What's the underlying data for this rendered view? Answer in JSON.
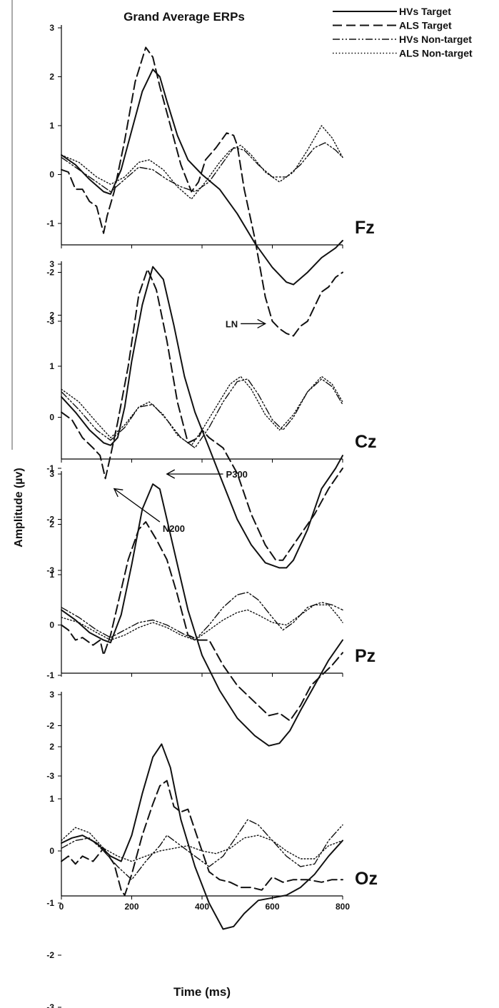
{
  "chart_data": {
    "type": "line",
    "title": "Grand Average ERPs",
    "xlabel": "Time (ms)",
    "ylabel": "Amplitude (µv)",
    "xlim": [
      0,
      800
    ],
    "ylim": [
      -3.5,
      3
    ],
    "xticks": [
      0,
      200,
      400,
      600,
      800
    ],
    "yticks": [
      3,
      2,
      1,
      0,
      -1,
      -2,
      -3
    ],
    "grid": false,
    "legend_position": "top-right",
    "legend": [
      {
        "name": "HVs Target",
        "style": "solid"
      },
      {
        "name": "ALS Target",
        "style": "dashed"
      },
      {
        "name": "HVs  Non-target",
        "style": "dashdotdot"
      },
      {
        "name": "ALS Non-target",
        "style": "dotted"
      }
    ],
    "panels": [
      {
        "label": "Fz",
        "annotations": [
          {
            "text": "LN",
            "x": 510,
            "y": -3.05,
            "target_x": 580,
            "target_y": -3.05
          }
        ],
        "series": [
          {
            "name": "HVs Target",
            "x": [
              0,
              40,
              80,
              120,
              140,
              170,
              200,
              230,
              260,
              280,
              300,
              330,
              360,
              400,
              450,
              500,
              550,
              600,
              640,
              660,
              700,
              740,
              780,
              800
            ],
            "y": [
              0.4,
              0.2,
              -0.1,
              -0.35,
              -0.4,
              0.1,
              0.9,
              1.7,
              2.15,
              2.0,
              1.5,
              0.8,
              0.3,
              0.0,
              -0.3,
              -0.8,
              -1.4,
              -1.9,
              -2.2,
              -2.25,
              -2.0,
              -1.7,
              -1.5,
              -1.35
            ]
          },
          {
            "name": "ALS Target",
            "x": [
              0,
              20,
              40,
              60,
              80,
              100,
              120,
              130,
              150,
              180,
              210,
              240,
              260,
              280,
              310,
              340,
              370,
              390,
              410,
              440,
              470,
              490,
              500,
              520,
              550,
              580,
              600,
              620,
              640,
              660,
              680,
              700,
              720,
              740,
              760,
              780,
              800
            ],
            "y": [
              0.1,
              0.05,
              -0.3,
              -0.3,
              -0.55,
              -0.65,
              -1.2,
              -0.85,
              -0.35,
              0.7,
              1.9,
              2.6,
              2.4,
              1.8,
              1.0,
              0.2,
              -0.35,
              -0.15,
              0.3,
              0.55,
              0.85,
              0.8,
              0.6,
              -0.3,
              -1.3,
              -2.5,
              -3.0,
              -3.15,
              -3.25,
              -3.3,
              -3.1,
              -3.0,
              -2.7,
              -2.4,
              -2.3,
              -2.1,
              -2.0
            ]
          },
          {
            "name": "HVs  Non-target",
            "x": [
              0,
              50,
              100,
              140,
              180,
              220,
              260,
              300,
              340,
              380,
              420,
              460,
              490,
              520,
              560,
              600,
              640,
              680,
              720,
              750,
              780,
              800
            ],
            "y": [
              0.35,
              0.1,
              -0.15,
              -0.35,
              -0.1,
              0.15,
              0.1,
              -0.1,
              -0.25,
              -0.35,
              -0.15,
              0.25,
              0.55,
              0.5,
              0.2,
              -0.05,
              -0.05,
              0.2,
              0.55,
              0.65,
              0.5,
              0.35
            ]
          },
          {
            "name": "ALS Non-target",
            "x": [
              0,
              50,
              100,
              140,
              180,
              220,
              250,
              290,
              330,
              370,
              410,
              450,
              480,
              510,
              540,
              580,
              620,
              660,
              700,
              740,
              770,
              800
            ],
            "y": [
              0.4,
              0.25,
              -0.05,
              -0.2,
              -0.05,
              0.25,
              0.3,
              0.1,
              -0.25,
              -0.5,
              -0.15,
              0.25,
              0.5,
              0.6,
              0.4,
              0.05,
              -0.15,
              0.05,
              0.5,
              1.0,
              0.75,
              0.35
            ]
          }
        ]
      },
      {
        "label": "Cz",
        "annotations": [
          {
            "text": "N200",
            "x": 280,
            "y": -2.05,
            "target_x": 150,
            "target_y": -1.4
          }
        ],
        "series": [
          {
            "name": "HVs Target",
            "x": [
              0,
              40,
              80,
              120,
              140,
              160,
              180,
              200,
              230,
              260,
              290,
              320,
              350,
              380,
              420,
              460,
              500,
              540,
              580,
              620,
              640,
              660,
              700,
              740,
              780,
              800
            ],
            "y": [
              0.4,
              0.1,
              -0.25,
              -0.5,
              -0.55,
              -0.4,
              0.2,
              1.1,
              2.2,
              2.95,
              2.7,
              1.8,
              0.8,
              0.1,
              -0.6,
              -1.3,
              -2.0,
              -2.5,
              -2.85,
              -2.95,
              -2.95,
              -2.8,
              -2.2,
              -1.4,
              -1.0,
              -0.75
            ]
          },
          {
            "name": "ALS Target",
            "x": [
              0,
              30,
              60,
              90,
              110,
              125,
              140,
              160,
              190,
              220,
              245,
              270,
              300,
              330,
              360,
              390,
              400,
              420,
              460,
              500,
              540,
              580,
              610,
              630,
              650,
              680,
              720,
              760,
              790,
              800
            ],
            "y": [
              0.1,
              -0.05,
              -0.4,
              -0.6,
              -0.75,
              -1.2,
              -0.75,
              -0.1,
              1.0,
              2.4,
              2.9,
              2.5,
              1.5,
              0.3,
              -0.5,
              -0.4,
              -0.25,
              -0.4,
              -0.6,
              -1.1,
              -1.9,
              -2.5,
              -2.8,
              -2.8,
              -2.6,
              -2.3,
              -1.9,
              -1.4,
              -1.1,
              -1.0
            ]
          },
          {
            "name": "HVs  Non-target",
            "x": [
              0,
              50,
              100,
              140,
              180,
              220,
              260,
              300,
              340,
              380,
              420,
              460,
              500,
              530,
              560,
              600,
              630,
              660,
              700,
              740,
              770,
              800
            ],
            "y": [
              0.5,
              0.15,
              -0.25,
              -0.45,
              -0.2,
              0.2,
              0.25,
              -0.05,
              -0.4,
              -0.6,
              -0.2,
              0.3,
              0.7,
              0.75,
              0.45,
              -0.05,
              -0.25,
              0.0,
              0.5,
              0.75,
              0.6,
              0.25
            ]
          },
          {
            "name": "ALS Non-target",
            "x": [
              0,
              50,
              100,
              140,
              180,
              220,
              250,
              290,
              330,
              370,
              400,
              440,
              480,
              510,
              540,
              580,
              620,
              660,
              700,
              740,
              770,
              800
            ],
            "y": [
              0.55,
              0.3,
              -0.1,
              -0.4,
              -0.15,
              0.2,
              0.3,
              0.05,
              -0.35,
              -0.55,
              -0.25,
              0.2,
              0.65,
              0.8,
              0.55,
              0.05,
              -0.25,
              0.05,
              0.5,
              0.8,
              0.65,
              0.3
            ]
          }
        ]
      },
      {
        "label": "Pz",
        "annotations": [
          {
            "text": "P300",
            "x": 460,
            "y": 3.0,
            "target_x": 300,
            "target_y": 3.0
          }
        ],
        "series": [
          {
            "name": "HVs Target",
            "x": [
              0,
              40,
              80,
              120,
              140,
              170,
              200,
              230,
              260,
              280,
              300,
              330,
              360,
              400,
              450,
              500,
              550,
              590,
              620,
              650,
              680,
              720,
              760,
              800
            ],
            "y": [
              0.3,
              0.1,
              -0.15,
              -0.3,
              -0.35,
              0.2,
              1.2,
              2.3,
              2.8,
              2.7,
              2.1,
              1.2,
              0.3,
              -0.6,
              -1.3,
              -1.85,
              -2.2,
              -2.4,
              -2.35,
              -2.1,
              -1.7,
              -1.2,
              -0.7,
              -0.3
            ]
          },
          {
            "name": "ALS Target",
            "x": [
              0,
              20,
              40,
              60,
              90,
              110,
              120,
              140,
              160,
              190,
              220,
              240,
              270,
              300,
              330,
              360,
              390,
              420,
              460,
              500,
              530,
              560,
              590,
              620,
              650,
              680,
              710,
              740,
              770,
              800
            ],
            "y": [
              0.0,
              -0.1,
              -0.3,
              -0.25,
              -0.4,
              -0.3,
              -0.6,
              -0.2,
              0.4,
              1.3,
              1.9,
              2.05,
              1.7,
              1.3,
              0.6,
              -0.2,
              -0.3,
              -0.3,
              -0.8,
              -1.2,
              -1.4,
              -1.6,
              -1.8,
              -1.75,
              -1.9,
              -1.6,
              -1.2,
              -1.0,
              -0.8,
              -0.55
            ]
          },
          {
            "name": "HVs  Non-target",
            "x": [
              0,
              50,
              100,
              140,
              180,
              220,
              260,
              300,
              340,
              380,
              420,
              460,
              500,
              530,
              560,
              600,
              630,
              660,
              700,
              740,
              770,
              800
            ],
            "y": [
              0.35,
              0.15,
              -0.1,
              -0.25,
              -0.1,
              0.05,
              0.1,
              0.0,
              -0.15,
              -0.3,
              0.0,
              0.35,
              0.6,
              0.65,
              0.5,
              0.15,
              -0.1,
              0.05,
              0.35,
              0.45,
              0.4,
              0.3
            ]
          },
          {
            "name": "ALS Non-target",
            "x": [
              0,
              50,
              100,
              140,
              180,
              220,
              260,
              300,
              340,
              380,
              420,
              460,
              500,
              530,
              560,
              600,
              640,
              680,
              720,
              760,
              790,
              800
            ],
            "y": [
              0.15,
              0.05,
              -0.15,
              -0.3,
              -0.2,
              -0.05,
              0.05,
              -0.05,
              -0.2,
              -0.3,
              -0.1,
              0.1,
              0.25,
              0.3,
              0.2,
              0.05,
              0.0,
              0.2,
              0.4,
              0.4,
              0.15,
              0.05
            ]
          }
        ]
      },
      {
        "label": "Oz",
        "annotations": [],
        "series": [
          {
            "name": "HVs Target",
            "x": [
              0,
              30,
              60,
              100,
              140,
              170,
              200,
              230,
              260,
              285,
              310,
              340,
              380,
              420,
              460,
              490,
              520,
              560,
              600,
              640,
              680,
              720,
              760,
              800
            ],
            "y": [
              0.15,
              0.25,
              0.3,
              0.15,
              -0.1,
              -0.2,
              0.3,
              1.1,
              1.8,
              2.05,
              1.6,
              0.6,
              -0.3,
              -1.0,
              -1.5,
              -1.45,
              -1.2,
              -0.95,
              -0.9,
              -0.85,
              -0.7,
              -0.45,
              -0.1,
              0.2
            ]
          },
          {
            "name": "ALS Target",
            "x": [
              0,
              20,
              40,
              60,
              90,
              120,
              150,
              170,
              180,
              200,
              230,
              260,
              280,
              300,
              320,
              340,
              360,
              380,
              400,
              420,
              450,
              480,
              510,
              540,
              570,
              600,
              630,
              660,
              700,
              740,
              770,
              800
            ],
            "y": [
              -0.2,
              -0.1,
              -0.25,
              -0.1,
              -0.2,
              0.05,
              -0.25,
              -0.75,
              -0.85,
              -0.45,
              0.3,
              0.9,
              1.25,
              1.35,
              0.85,
              0.75,
              0.8,
              0.4,
              0.0,
              -0.4,
              -0.55,
              -0.6,
              -0.7,
              -0.7,
              -0.75,
              -0.5,
              -0.6,
              -0.55,
              -0.55,
              -0.6,
              -0.55,
              -0.55
            ]
          },
          {
            "name": "HVs  Non-target",
            "x": [
              0,
              40,
              80,
              120,
              160,
              200,
              240,
              280,
              300,
              340,
              380,
              420,
              460,
              500,
              530,
              560,
              600,
              640,
              680,
              720,
              760,
              800
            ],
            "y": [
              0.05,
              0.2,
              0.25,
              0.0,
              -0.3,
              -0.55,
              -0.2,
              0.1,
              0.3,
              0.1,
              -0.1,
              -0.3,
              -0.1,
              0.3,
              0.6,
              0.5,
              0.2,
              -0.1,
              -0.3,
              -0.25,
              0.2,
              0.5
            ]
          },
          {
            "name": "ALS Non-target",
            "x": [
              0,
              40,
              80,
              120,
              160,
              200,
              240,
              280,
              320,
              360,
              400,
              440,
              480,
              520,
              560,
              600,
              640,
              680,
              720,
              760,
              800
            ],
            "y": [
              0.2,
              0.45,
              0.35,
              0.05,
              -0.1,
              -0.2,
              -0.1,
              0.0,
              0.05,
              0.1,
              0.0,
              -0.05,
              0.05,
              0.25,
              0.3,
              0.2,
              0.0,
              -0.15,
              -0.15,
              0.1,
              0.2
            ]
          }
        ]
      }
    ]
  }
}
